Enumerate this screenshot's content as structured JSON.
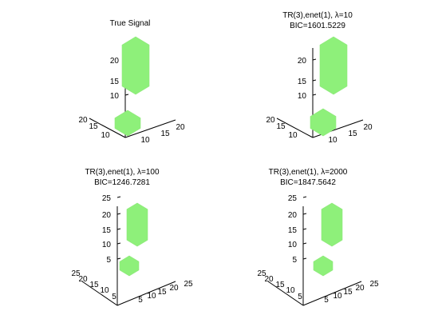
{
  "colors": {
    "background": "#ffffff",
    "axis": "#000000",
    "blob": "#8ef07a"
  },
  "chart_data": [
    {
      "type": "scatter3d",
      "title": [
        "True Signal"
      ],
      "z_ticks": [
        "10",
        "15",
        "20"
      ],
      "x_ticks": [
        "10",
        "15",
        "20"
      ],
      "y_ticks": [
        "10",
        "15",
        "20"
      ],
      "blobs": [
        {
          "part": "upper",
          "z_range": [
            10,
            24
          ]
        },
        {
          "part": "lower",
          "z_range": [
            1,
            4
          ]
        }
      ]
    },
    {
      "type": "scatter3d",
      "title": [
        "TR(3),enet(1), λ=10",
        "BIC=1601.5229"
      ],
      "z_ticks": [
        "10",
        "15",
        "20"
      ],
      "x_ticks": [
        "10",
        "15",
        "20"
      ],
      "y_ticks": [
        "10",
        "15",
        "20"
      ],
      "blobs": [
        {
          "part": "upper",
          "z_range": [
            10,
            24
          ]
        },
        {
          "part": "lower",
          "z_range": [
            1,
            4
          ]
        }
      ]
    },
    {
      "type": "scatter3d",
      "title": [
        "TR(3),enet(1), λ=100",
        "BIC=1246.7281"
      ],
      "z_ticks": [
        "5",
        "10",
        "15",
        "20",
        "25"
      ],
      "x_ticks": [
        "5",
        "10",
        "15",
        "20",
        "25"
      ],
      "y_ticks": [
        "5",
        "10",
        "15",
        "20",
        "25"
      ],
      "blobs": [
        {
          "part": "upper",
          "z_range": [
            10,
            25
          ]
        },
        {
          "part": "lower",
          "z_range": [
            1,
            5
          ]
        }
      ]
    },
    {
      "type": "scatter3d",
      "title": [
        "TR(3),enet(1), λ=2000",
        "BIC=1847.5642"
      ],
      "z_ticks": [
        "5",
        "10",
        "15",
        "20",
        "25"
      ],
      "x_ticks": [
        "5",
        "10",
        "15",
        "20",
        "25"
      ],
      "y_ticks": [
        "5",
        "10",
        "15",
        "20",
        "25"
      ],
      "blobs": [
        {
          "part": "upper",
          "z_range": [
            10,
            25
          ]
        },
        {
          "part": "lower",
          "z_range": [
            1,
            5
          ]
        }
      ]
    }
  ]
}
